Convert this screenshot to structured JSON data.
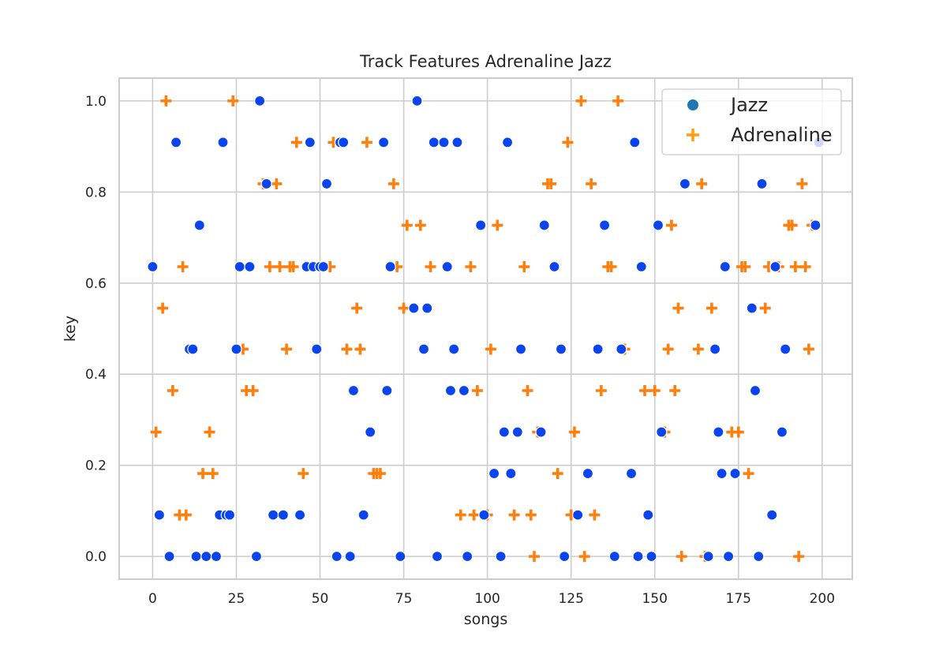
{
  "chart_data": {
    "type": "scatter",
    "title": "Track Features Adrenaline Jazz",
    "xlabel": "songs",
    "ylabel": "key",
    "xlim": [
      -10,
      209
    ],
    "ylim": [
      -0.05,
      1.05
    ],
    "xticks": [
      0,
      25,
      50,
      75,
      100,
      125,
      150,
      175,
      200
    ],
    "yticks": [
      0.0,
      0.2,
      0.4,
      0.6,
      0.8,
      1.0
    ],
    "xtick_labels": [
      "0",
      "25",
      "50",
      "75",
      "100",
      "125",
      "150",
      "175",
      "200"
    ],
    "ytick_labels": [
      "0.0",
      "0.2",
      "0.4",
      "0.6",
      "0.8",
      "1.0"
    ],
    "grid": true,
    "legend": {
      "position": "top-right",
      "entries": [
        {
          "label": "Jazz",
          "marker": "circle",
          "color": "#1f77b4"
        },
        {
          "label": "Adrenaline",
          "marker": "plus",
          "color": "#ff9f0e"
        }
      ]
    },
    "series": [
      {
        "name": "Jazz",
        "marker": "circle",
        "color": "#0a44ee",
        "x": [
          0,
          2,
          5,
          7,
          11,
          12,
          13,
          14,
          16,
          19,
          20,
          21,
          22,
          23,
          25,
          26,
          29,
          31,
          32,
          34,
          36,
          39,
          44,
          46,
          47,
          48,
          49,
          50,
          51,
          52,
          55,
          56,
          57,
          59,
          60,
          63,
          65,
          69,
          70,
          71,
          74,
          78,
          79,
          81,
          82,
          84,
          85,
          87,
          88,
          89,
          90,
          91,
          93,
          94,
          98,
          99,
          102,
          104,
          105,
          106,
          107,
          109,
          110,
          116,
          117,
          120,
          122,
          123,
          127,
          130,
          133,
          135,
          138,
          140,
          143,
          144,
          145,
          146,
          148,
          149,
          151,
          152,
          159,
          166,
          168,
          169,
          170,
          171,
          172,
          174,
          179,
          180,
          181,
          182,
          185,
          186,
          188,
          189,
          198,
          199
        ],
        "y": [
          0.636,
          0.091,
          0.0,
          0.909,
          0.455,
          0.455,
          0.0,
          0.727,
          0.0,
          0.0,
          0.091,
          0.909,
          0.091,
          0.091,
          0.455,
          0.636,
          0.636,
          0.0,
          1.0,
          0.818,
          0.091,
          0.091,
          0.091,
          0.636,
          0.909,
          0.636,
          0.455,
          0.636,
          0.636,
          0.818,
          0.0,
          0.909,
          0.909,
          0.0,
          0.364,
          0.091,
          0.273,
          0.909,
          0.364,
          0.636,
          0.0,
          0.545,
          1.0,
          0.455,
          0.545,
          0.909,
          0.0,
          0.909,
          0.636,
          0.364,
          0.455,
          0.909,
          0.364,
          0.0,
          0.727,
          0.091,
          0.182,
          0.0,
          0.273,
          0.909,
          0.182,
          0.273,
          0.455,
          0.273,
          0.727,
          0.636,
          0.455,
          0.0,
          0.091,
          0.182,
          0.455,
          0.727,
          0.0,
          0.455,
          0.182,
          0.909,
          0.0,
          0.636,
          0.091,
          0.0,
          0.727,
          0.273,
          0.818,
          0.0,
          0.455,
          0.273,
          0.182,
          0.636,
          0.0,
          0.182,
          0.545,
          0.364,
          0.0,
          0.818,
          0.091,
          0.636,
          0.273,
          0.455,
          0.727,
          0.909
        ]
      },
      {
        "name": "Adrenaline",
        "marker": "plus",
        "color": "#ff7f0e",
        "x": [
          1,
          3,
          4,
          6,
          8,
          9,
          10,
          15,
          17,
          18,
          24,
          27,
          28,
          30,
          33,
          35,
          37,
          38,
          40,
          41,
          42,
          43,
          45,
          53,
          54,
          58,
          61,
          62,
          64,
          66,
          67,
          68,
          72,
          73,
          75,
          76,
          80,
          83,
          92,
          95,
          96,
          97,
          100,
          101,
          103,
          108,
          111,
          112,
          113,
          114,
          115,
          118,
          119,
          121,
          124,
          125,
          126,
          128,
          129,
          131,
          132,
          134,
          136,
          137,
          139,
          141,
          147,
          150,
          153,
          154,
          155,
          156,
          157,
          158,
          163,
          164,
          165,
          167,
          173,
          175,
          176,
          177,
          178,
          183,
          184,
          187,
          190,
          191,
          192,
          193,
          194,
          195,
          196,
          197
        ],
        "y": [
          0.273,
          0.545,
          1.0,
          0.364,
          0.091,
          0.636,
          0.091,
          0.182,
          0.273,
          0.182,
          1.0,
          0.455,
          0.364,
          0.364,
          0.818,
          0.636,
          0.818,
          0.636,
          0.455,
          0.636,
          0.636,
          0.909,
          0.182,
          0.636,
          0.909,
          0.455,
          0.545,
          0.455,
          0.909,
          0.182,
          0.182,
          0.182,
          0.818,
          0.636,
          0.545,
          0.727,
          0.727,
          0.636,
          0.091,
          0.636,
          0.091,
          0.364,
          0.091,
          0.455,
          0.727,
          0.091,
          0.636,
          0.364,
          0.091,
          0.0,
          0.273,
          0.818,
          0.818,
          0.182,
          0.909,
          0.091,
          0.273,
          1.0,
          0.0,
          0.818,
          0.091,
          0.364,
          0.636,
          0.636,
          1.0,
          0.455,
          0.364,
          0.364,
          0.273,
          0.455,
          0.727,
          0.364,
          0.545,
          0.0,
          0.455,
          0.818,
          0.0,
          0.545,
          0.273,
          0.273,
          0.636,
          0.636,
          0.182,
          0.545,
          0.636,
          0.636,
          0.727,
          0.727,
          0.636,
          0.0,
          0.818,
          0.636,
          0.455,
          0.727
        ]
      }
    ]
  }
}
